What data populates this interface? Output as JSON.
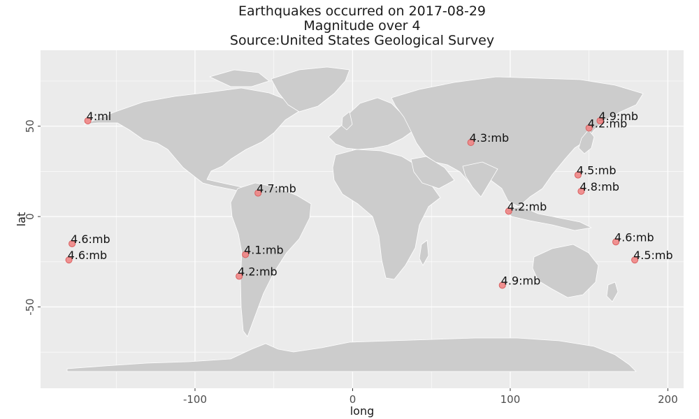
{
  "chart_data": {
    "type": "scatter",
    "title": [
      "Earthquakes occurred on 2017-08-29",
      "Magnitude over 4",
      "Source:United States Geological Survey"
    ],
    "xlabel": "long",
    "ylabel": "lat",
    "xlim": [
      -198,
      210
    ],
    "ylim": [
      -95,
      92
    ],
    "xticks": [
      -100,
      0,
      100,
      200
    ],
    "yticks": [
      50,
      0,
      -50
    ],
    "grid": true,
    "colors": {
      "panel": "#ebebeb",
      "grid": "#ffffff",
      "land": "#cccccc",
      "point_fill": "#f08080",
      "point_stroke": "#d95f5f"
    },
    "points": [
      {
        "x": -168,
        "y": 53,
        "label": "4:ml"
      },
      {
        "x": -178,
        "y": -15,
        "label": "4.6:mb"
      },
      {
        "x": -180,
        "y": -24,
        "label": "4.6:mb"
      },
      {
        "x": -60,
        "y": 13,
        "label": "4.7:mb"
      },
      {
        "x": -68,
        "y": -21,
        "label": "4.1:mb"
      },
      {
        "x": -72,
        "y": -33,
        "label": "4.2:mb"
      },
      {
        "x": 75,
        "y": 41,
        "label": "4.3:mb"
      },
      {
        "x": 99,
        "y": 3,
        "label": "4.2:mb"
      },
      {
        "x": 95,
        "y": -38,
        "label": "4.9:mb"
      },
      {
        "x": 150,
        "y": 49,
        "label": "4.2:mb"
      },
      {
        "x": 157,
        "y": 53,
        "label": "4.9:mb"
      },
      {
        "x": 143,
        "y": 23,
        "label": "4.5:mb"
      },
      {
        "x": 145,
        "y": 14,
        "label": "4.8:mb"
      },
      {
        "x": 167,
        "y": -14,
        "label": "4.6:mb"
      },
      {
        "x": 179,
        "y": -24,
        "label": "4.5:mb"
      }
    ],
    "basemap": "world-land-outlines"
  }
}
